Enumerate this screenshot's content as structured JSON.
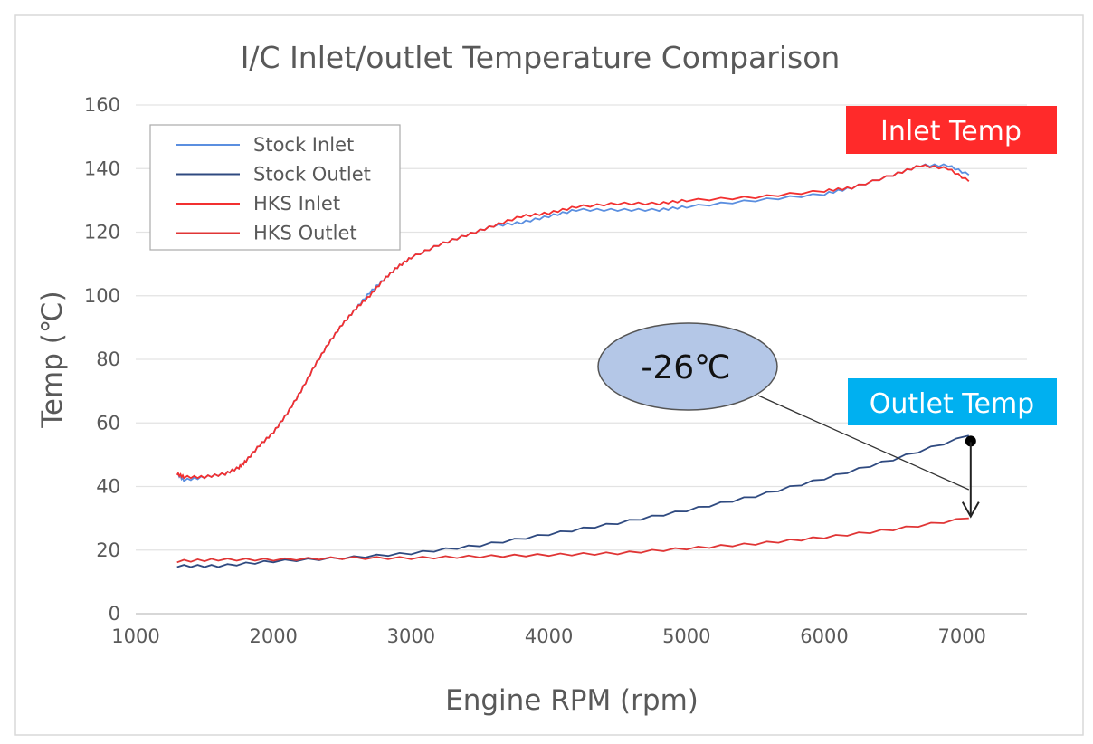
{
  "chart_data": {
    "type": "line",
    "title": "I/C Inlet/outlet Temperature Comparison",
    "xlabel": "Engine RPM (rpm)",
    "ylabel": "Temp (℃)",
    "xlim": [
      1000,
      7500
    ],
    "ylim": [
      0,
      160
    ],
    "xticks": [
      1000,
      2000,
      3000,
      4000,
      5000,
      6000,
      7000
    ],
    "yticks": [
      0,
      20,
      40,
      60,
      80,
      100,
      120,
      140,
      160
    ],
    "grid": "horizontal",
    "legend_position": "top-left",
    "series": [
      {
        "name": "Stock Inlet",
        "color": "#5b8fe0",
        "x": [
          1300,
          1350,
          1500,
          1650,
          1750,
          1800,
          1900,
          2000,
          2100,
          2200,
          2300,
          2400,
          2500,
          2600,
          2700,
          2800,
          2900,
          3000,
          3200,
          3400,
          3600,
          3800,
          4000,
          4200,
          4500,
          4800,
          5000,
          5500,
          6000,
          6200,
          6500,
          6700,
          6900,
          7050
        ],
        "y": [
          44,
          42,
          43,
          44,
          46,
          48,
          53,
          57,
          63,
          70,
          78,
          85,
          91,
          96,
          101,
          105,
          109,
          112,
          116,
          119,
          122,
          123,
          125,
          127,
          127,
          127,
          128,
          130,
          132,
          134,
          138,
          141,
          141,
          138
        ]
      },
      {
        "name": "Stock Outlet",
        "color": "#2f4a80",
        "x": [
          1300,
          1600,
          2000,
          2500,
          3000,
          3500,
          4000,
          4500,
          5000,
          5500,
          6000,
          6500,
          7050
        ],
        "y": [
          15,
          15,
          16.5,
          17.5,
          19,
          21.5,
          25,
          28.5,
          32.5,
          37,
          42.5,
          48.5,
          56
        ]
      },
      {
        "name": "HKS Inlet",
        "color": "#f23030",
        "x": [
          1300,
          1350,
          1500,
          1650,
          1750,
          1800,
          1900,
          2000,
          2100,
          2200,
          2300,
          2400,
          2500,
          2600,
          2700,
          2800,
          2900,
          3000,
          3200,
          3400,
          3600,
          3800,
          4000,
          4200,
          4500,
          4800,
          5000,
          5500,
          6000,
          6200,
          6500,
          6700,
          6900,
          7050
        ],
        "y": [
          44,
          43,
          43,
          44,
          46,
          48,
          53,
          57,
          63,
          70,
          78,
          85,
          91,
          96,
          100,
          105,
          109,
          112,
          116,
          119,
          122,
          125,
          126,
          128,
          129,
          129,
          130,
          131,
          133,
          134,
          138,
          141,
          140,
          136
        ]
      },
      {
        "name": "HKS Outlet",
        "color": "#e03535",
        "x": [
          1300,
          1600,
          2000,
          2500,
          3000,
          3500,
          4000,
          4500,
          5000,
          5500,
          6000,
          6500,
          7050
        ],
        "y": [
          16.5,
          17,
          17,
          17.5,
          17.5,
          18,
          18.5,
          19,
          20.5,
          22,
          24,
          26.5,
          30
        ]
      }
    ],
    "annotations": {
      "inlet_label": "Inlet Temp",
      "inlet_color": "#ff2a2a",
      "outlet_label": "Outlet Temp",
      "outlet_color": "#00b0f0",
      "delta_label": "-26℃",
      "delta_fill": "#b4c7e7",
      "delta_from": [
        7050,
        54
      ],
      "delta_to": [
        7050,
        30
      ]
    }
  }
}
